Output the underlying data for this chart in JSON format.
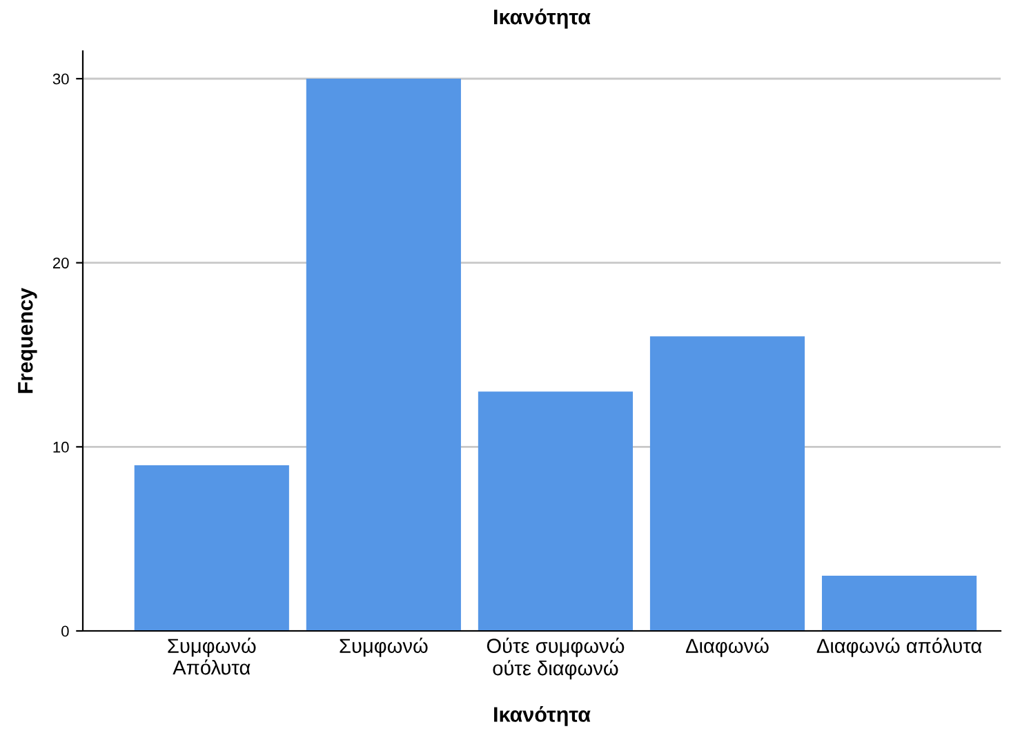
{
  "chart_data": {
    "type": "bar",
    "title": "Ικανότητα",
    "xlabel": "Ικανότητα",
    "ylabel": "Frequency",
    "categories": [
      "Συμφωνώ\nΑπόλυτα",
      "Συμφωνώ",
      "Ούτε συμφωνώ\nούτε διαφωνώ",
      "Διαφωνώ",
      "Διαφωνώ απόλυτα"
    ],
    "values": [
      9,
      30,
      13,
      16,
      3
    ],
    "color": "#5596e6",
    "ylim": [
      0,
      31.5
    ],
    "yticks": [
      0,
      10,
      20,
      30
    ],
    "grid": "y"
  }
}
